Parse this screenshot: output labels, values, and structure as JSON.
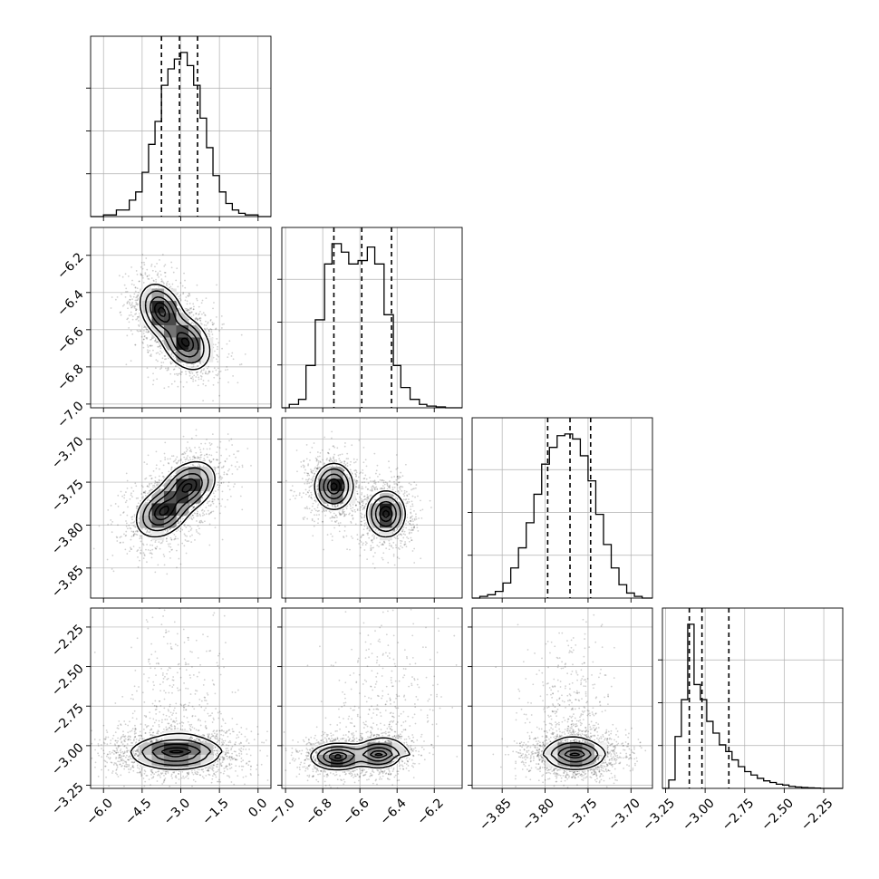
{
  "chart_data": {
    "type": "corner",
    "grid": true,
    "parameters": [
      {
        "range": [
          -6.5,
          0.5
        ],
        "ticks": [
          -6.0,
          -4.5,
          -3.0,
          -1.5,
          0.0
        ],
        "tick_labels": [
          "−6.0",
          "−4.5",
          "−3.0",
          "−1.5",
          "0.0"
        ],
        "quantiles": [
          -3.75,
          -3.05,
          -2.35
        ]
      },
      {
        "range": [
          -7.02,
          -6.05
        ],
        "ticks": [
          -7.0,
          -6.8,
          -6.6,
          -6.4,
          -6.2
        ],
        "tick_labels": [
          "−7.0",
          "−6.8",
          "−6.6",
          "−6.4",
          "−6.2"
        ],
        "quantiles": [
          -6.74,
          -6.59,
          -6.43
        ]
      },
      {
        "range": [
          -3.885,
          -3.675
        ],
        "ticks": [
          -3.85,
          -3.8,
          -3.75,
          -3.7
        ],
        "tick_labels": [
          "−3.85",
          "−3.80",
          "−3.75",
          "−3.70"
        ],
        "quantiles": [
          -3.797,
          -3.771,
          -3.747
        ]
      },
      {
        "range": [
          -3.27,
          -2.13
        ],
        "ticks": [
          -3.25,
          -3.0,
          -2.75,
          -2.5,
          -2.25
        ],
        "tick_labels": [
          "−3.25",
          "−3.00",
          "−2.75",
          "−2.50",
          "−2.25"
        ],
        "quantiles": [
          -3.1,
          -3.02,
          -2.85
        ]
      }
    ],
    "histograms": [
      {
        "edges": [
          -6.5,
          -6.0,
          -5.5,
          -5.0,
          -4.75,
          -4.5,
          -4.25,
          -4.0,
          -3.75,
          -3.5,
          -3.25,
          -3.0,
          -2.75,
          -2.5,
          -2.25,
          -2.0,
          -1.75,
          -1.5,
          -1.25,
          -1.0,
          -0.75,
          -0.5,
          0.0,
          0.5
        ],
        "counts": [
          0,
          0.01,
          0.04,
          0.1,
          0.15,
          0.27,
          0.44,
          0.58,
          0.8,
          0.9,
          0.96,
          1.0,
          0.92,
          0.8,
          0.6,
          0.42,
          0.25,
          0.15,
          0.08,
          0.04,
          0.02,
          0.01,
          0
        ]
      },
      {
        "edges": [
          -7.02,
          -6.98,
          -6.93,
          -6.89,
          -6.84,
          -6.79,
          -6.75,
          -6.7,
          -6.66,
          -6.61,
          -6.56,
          -6.52,
          -6.47,
          -6.42,
          -6.38,
          -6.33,
          -6.28,
          -6.24,
          -6.19,
          -6.14,
          -6.1,
          -6.05
        ],
        "counts": [
          0,
          0.02,
          0.05,
          0.25,
          0.52,
          0.85,
          0.97,
          0.92,
          0.85,
          0.87,
          0.95,
          0.85,
          0.55,
          0.25,
          0.12,
          0.05,
          0.02,
          0.01,
          0.005,
          0,
          0
        ]
      },
      {
        "edges": [
          -3.885,
          -3.876,
          -3.867,
          -3.858,
          -3.849,
          -3.84,
          -3.831,
          -3.822,
          -3.813,
          -3.804,
          -3.795,
          -3.786,
          -3.777,
          -3.768,
          -3.759,
          -3.75,
          -3.741,
          -3.732,
          -3.723,
          -3.714,
          -3.705,
          -3.696,
          -3.687,
          -3.675
        ],
        "counts": [
          0,
          0.01,
          0.02,
          0.04,
          0.09,
          0.18,
          0.3,
          0.45,
          0.62,
          0.8,
          0.9,
          0.97,
          0.98,
          0.95,
          0.85,
          0.7,
          0.5,
          0.32,
          0.18,
          0.08,
          0.03,
          0.01,
          0
        ]
      },
      {
        "edges": [
          -3.27,
          -3.23,
          -3.19,
          -3.15,
          -3.11,
          -3.07,
          -3.03,
          -2.99,
          -2.95,
          -2.91,
          -2.87,
          -2.83,
          -2.79,
          -2.75,
          -2.71,
          -2.67,
          -2.63,
          -2.59,
          -2.55,
          -2.51,
          -2.47,
          -2.43,
          -2.39,
          -2.35,
          -2.31,
          -2.27,
          -2.13
        ],
        "counts": [
          0,
          0.05,
          0.31,
          0.53,
          0.98,
          0.62,
          0.53,
          0.4,
          0.33,
          0.26,
          0.22,
          0.17,
          0.13,
          0.1,
          0.08,
          0.06,
          0.045,
          0.035,
          0.025,
          0.02,
          0.012,
          0.008,
          0.005,
          0.003,
          0.002,
          0
        ]
      }
    ],
    "pairs": [
      {
        "row": 1,
        "col": 0,
        "blobs": [
          {
            "cx": -3.75,
            "cy": -6.5,
            "sx": 0.4,
            "sy": 0.07,
            "r": -0.3,
            "a": 1.0
          },
          {
            "cx": -2.8,
            "cy": -6.67,
            "sx": 0.45,
            "sy": 0.07,
            "r": -0.3,
            "a": 1.0
          }
        ],
        "contour_levels": [
          0.12,
          0.3,
          0.55,
          0.8,
          0.95
        ],
        "tail": null
      },
      {
        "row": 2,
        "col": 0,
        "blobs": [
          {
            "cx": -3.7,
            "cy": -3.785,
            "sx": 0.5,
            "sy": 0.014,
            "r": 0.3,
            "a": 1.0
          },
          {
            "cx": -2.7,
            "cy": -3.755,
            "sx": 0.5,
            "sy": 0.014,
            "r": 0.3,
            "a": 1.0
          }
        ],
        "contour_levels": [
          0.12,
          0.3,
          0.55,
          0.8,
          0.95
        ],
        "tail": null
      },
      {
        "row": 2,
        "col": 1,
        "blobs": [
          {
            "cx": -6.74,
            "cy": -3.755,
            "sx": 0.05,
            "sy": 0.013,
            "r": 0.0,
            "a": 1.0
          },
          {
            "cx": -6.46,
            "cy": -3.787,
            "sx": 0.05,
            "sy": 0.013,
            "r": 0.0,
            "a": 1.0
          }
        ],
        "contour_levels": [
          0.12,
          0.3,
          0.55,
          0.8,
          0.95
        ],
        "tail": null
      },
      {
        "row": 3,
        "col": 0,
        "blobs": [
          {
            "cx": -3.2,
            "cy": -3.05,
            "sx": 0.85,
            "sy": 0.05,
            "r": 0.0,
            "a": 1.0
          }
        ],
        "contour_levels": [
          0.12,
          0.3,
          0.55,
          0.8,
          0.95
        ],
        "tail": {
          "cx": -3.0,
          "sx": 0.9
        }
      },
      {
        "row": 3,
        "col": 1,
        "blobs": [
          {
            "cx": -6.72,
            "cy": -3.07,
            "sx": 0.07,
            "sy": 0.04,
            "r": 0.0,
            "a": 1.0
          },
          {
            "cx": -6.5,
            "cy": -3.06,
            "sx": 0.06,
            "sy": 0.04,
            "r": 0.0,
            "a": 0.85
          }
        ],
        "contour_levels": [
          0.12,
          0.3,
          0.55,
          0.8,
          0.95
        ],
        "tail": {
          "cx": -6.45,
          "sx": 0.12
        }
      },
      {
        "row": 3,
        "col": 2,
        "blobs": [
          {
            "cx": -3.765,
            "cy": -3.06,
            "sx": 0.017,
            "sy": 0.045,
            "r": 0.0,
            "a": 1.0
          }
        ],
        "contour_levels": [
          0.12,
          0.3,
          0.55,
          0.8,
          0.95
        ],
        "tail": {
          "cx": -3.77,
          "sx": 0.02
        }
      }
    ]
  }
}
